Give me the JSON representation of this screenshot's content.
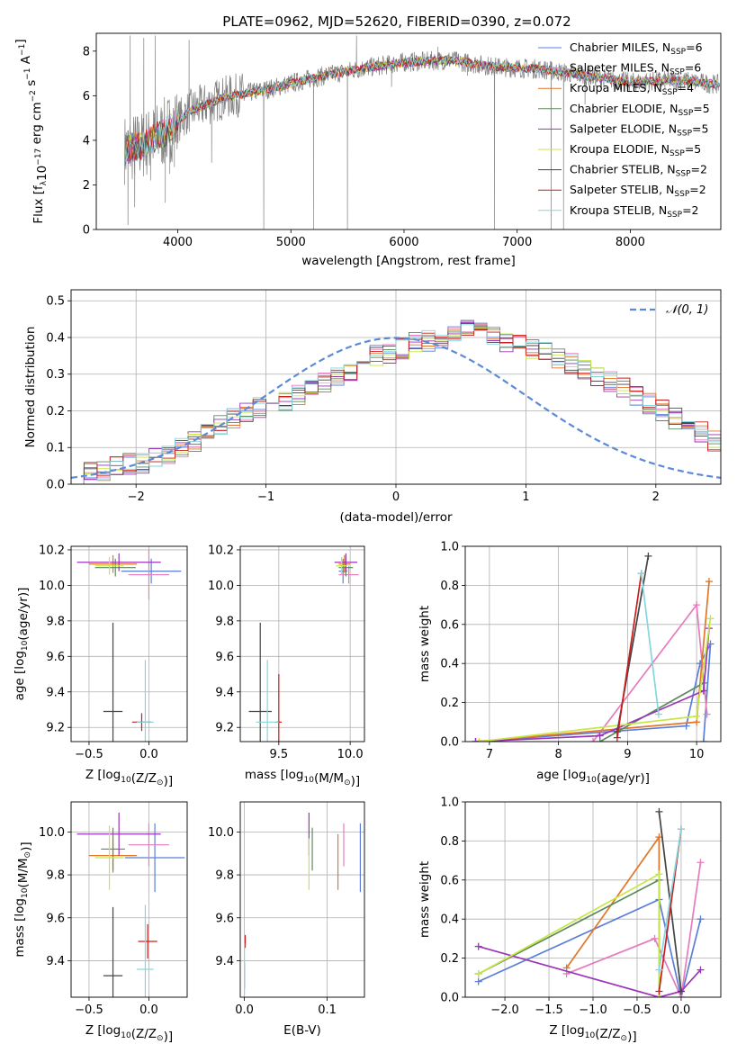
{
  "figure_title": "PLATE=0962, MJD=52620, FIBERID=0390, z=0.072",
  "colors": {
    "Chabrier MILES": "#5b7fd8",
    "Salpeter MILES": "#e67bbd",
    "Kroupa MILES": "#e0772a",
    "Chabrier ELODIE": "#5c8a5c",
    "Salpeter ELODIE": "#9a34b8",
    "Kroupa ELODIE": "#c8e64a",
    "Chabrier STELIB": "#444444",
    "Salpeter STELIB": "#c81e1e",
    "Kroupa STELIB": "#86d6de",
    "data": "#7f7f7f",
    "normal": "#5b8bd6"
  },
  "chart_data": [
    {
      "id": "spectrum",
      "type": "line",
      "xlabel": "wavelength [Angstrom, rest frame]",
      "ylabel": "Flux [f_λ10^-17 erg cm^-2 s^-1 A^-1]",
      "xlim": [
        3280,
        8800
      ],
      "ylim": [
        0,
        8.8
      ],
      "xticks": [
        4000,
        5000,
        6000,
        7000,
        8000
      ],
      "yticks": [
        0,
        2,
        4,
        6,
        8
      ],
      "grid": false,
      "legend_position": "right",
      "legend": [
        {
          "label": "Chabrier MILES, N",
          "sub": "SSP",
          "suffix": "=6",
          "color": "Chabrier MILES"
        },
        {
          "label": "Salpeter MILES, N",
          "sub": "SSP",
          "suffix": "=6",
          "color": "Salpeter MILES"
        },
        {
          "label": "Kroupa MILES, N",
          "sub": "SSP",
          "suffix": "=4",
          "color": "Kroupa MILES"
        },
        {
          "label": "Chabrier ELODIE, N",
          "sub": "SSP",
          "suffix": "=5",
          "color": "Chabrier ELODIE"
        },
        {
          "label": "Salpeter ELODIE, N",
          "sub": "SSP",
          "suffix": "=5",
          "color": "Salpeter ELODIE"
        },
        {
          "label": "Kroupa ELODIE, N",
          "sub": "SSP",
          "suffix": "=5",
          "color": "Kroupa ELODIE"
        },
        {
          "label": "Chabrier STELIB, N",
          "sub": "SSP",
          "suffix": "=2",
          "color": "Chabrier STELIB"
        },
        {
          "label": "Salpeter STELIB, N",
          "sub": "SSP",
          "suffix": "=2",
          "color": "Salpeter STELIB"
        },
        {
          "label": "Kroupa STELIB, N",
          "sub": "SSP",
          "suffix": "=2",
          "color": "Kroupa STELIB"
        }
      ],
      "continuum": [
        [
          3530,
          3.6
        ],
        [
          3700,
          3.8
        ],
        [
          3900,
          4.4
        ],
        [
          4100,
          5.3
        ],
        [
          4400,
          5.9
        ],
        [
          4800,
          6.3
        ],
        [
          5200,
          6.8
        ],
        [
          5600,
          7.2
        ],
        [
          6000,
          7.5
        ],
        [
          6400,
          7.6
        ],
        [
          6800,
          7.3
        ],
        [
          7200,
          7.2
        ],
        [
          7600,
          6.9
        ],
        [
          8000,
          6.6
        ],
        [
          8400,
          6.7
        ],
        [
          8790,
          6.5
        ]
      ],
      "spikes": [
        [
          3560,
          0.2
        ],
        [
          3580,
          8.7
        ],
        [
          3620,
          1.0
        ],
        [
          3700,
          8.6
        ],
        [
          3760,
          2.2
        ],
        [
          3800,
          8.7
        ],
        [
          3890,
          1.2
        ],
        [
          3930,
          2.5
        ],
        [
          3970,
          2.8
        ],
        [
          4100,
          8.5
        ],
        [
          4300,
          3.0
        ],
        [
          4760,
          0
        ],
        [
          5200,
          0
        ],
        [
          5500,
          0
        ],
        [
          5580,
          8.7
        ],
        [
          5890,
          6.4
        ],
        [
          6300,
          8.2
        ],
        [
          6560,
          6.9
        ],
        [
          6800,
          0
        ],
        [
          7300,
          0
        ],
        [
          7410,
          0
        ],
        [
          7600,
          5.6
        ]
      ]
    },
    {
      "id": "residuals",
      "type": "histogram",
      "xlabel": "(data-model)/error",
      "ylabel": "Normed distribution",
      "xlim": [
        -2.5,
        2.5
      ],
      "ylim": [
        0,
        0.53
      ],
      "xticks": [
        -2,
        -1,
        0,
        1,
        2
      ],
      "yticks": [
        0.0,
        0.1,
        0.2,
        0.3,
        0.4,
        0.5
      ],
      "grid": true,
      "legend_position": "top-right",
      "legend": [
        {
          "label": "N(0, 1)",
          "color": "normal"
        }
      ],
      "bin_width": 0.1,
      "bins_start": -2.5,
      "base_values": [
        0.025,
        0.03,
        0.04,
        0.05,
        0.055,
        0.06,
        0.07,
        0.08,
        0.095,
        0.115,
        0.14,
        0.16,
        0.18,
        0.2,
        0.21,
        0.22,
        0.23,
        0.245,
        0.26,
        0.28,
        0.29,
        0.31,
        0.33,
        0.35,
        0.36,
        0.37,
        0.385,
        0.39,
        0.4,
        0.41,
        0.42,
        0.41,
        0.4,
        0.39,
        0.38,
        0.37,
        0.36,
        0.34,
        0.33,
        0.31,
        0.29,
        0.28,
        0.26,
        0.24,
        0.22,
        0.2,
        0.18,
        0.16,
        0.14,
        0.12,
        0.1,
        0.09,
        0.075,
        0.06,
        0.05,
        0.04,
        0.035,
        0.03,
        0.025,
        0.02
      ]
    },
    {
      "id": "age-vs-Z",
      "type": "scatter",
      "xlabel": "Z [log10(Z/Z☉)]",
      "ylabel": "age [log10(age/yr)]",
      "xlim": [
        -0.65,
        0.32
      ],
      "ylim": [
        9.12,
        10.22
      ],
      "xticks": [
        -0.5,
        0.0
      ],
      "yticks": [
        9.2,
        9.4,
        9.6,
        9.8,
        10.0,
        10.2
      ],
      "grid": true,
      "points": [
        {
          "s": "Chabrier MILES",
          "x": 0.02,
          "y": 10.08,
          "ex": 0.25,
          "ey": 0.07
        },
        {
          "s": "Salpeter MILES",
          "x": 0.0,
          "y": 10.06,
          "ex": 0.17,
          "ey": 0.14
        },
        {
          "s": "Kroupa MILES",
          "x": -0.3,
          "y": 10.12,
          "ex": 0.2,
          "ey": 0.05
        },
        {
          "s": "Chabrier ELODIE",
          "x": -0.28,
          "y": 10.1,
          "ex": 0.17,
          "ey": 0.05
        },
        {
          "s": "Salpeter ELODIE",
          "x": -0.25,
          "y": 10.13,
          "ex": 0.35,
          "ey": 0.05
        },
        {
          "s": "Kroupa ELODIE",
          "x": -0.33,
          "y": 10.11,
          "ex": 0.12,
          "ey": 0.05
        },
        {
          "s": "Chabrier STELIB",
          "x": -0.3,
          "y": 9.29,
          "ex": 0.08,
          "ey": 0.5
        },
        {
          "s": "Salpeter STELIB",
          "x": -0.06,
          "y": 9.23,
          "ex": 0.08,
          "ey": 0.05
        },
        {
          "s": "Kroupa STELIB",
          "x": -0.03,
          "y": 9.23,
          "ex": 0.07,
          "ey": 0.35
        }
      ]
    },
    {
      "id": "age-vs-mass",
      "type": "scatter",
      "xlabel": "mass [log10(M/M☉)]",
      "ylabel": "",
      "xlim": [
        9.23,
        10.1
      ],
      "ylim": [
        9.12,
        10.22
      ],
      "xticks": [
        9.5,
        10.0
      ],
      "yticks": [
        9.2,
        9.4,
        9.6,
        9.8,
        10.0,
        10.2
      ],
      "grid": true,
      "points": [
        {
          "s": "Chabrier MILES",
          "x": 9.95,
          "y": 10.08,
          "ex": 0.03,
          "ey": 0.07
        },
        {
          "s": "Salpeter MILES",
          "x": 9.99,
          "y": 10.06,
          "ex": 0.07,
          "ey": 0.05
        },
        {
          "s": "Kroupa MILES",
          "x": 9.96,
          "y": 10.12,
          "ex": 0.04,
          "ey": 0.05
        },
        {
          "s": "Chabrier ELODIE",
          "x": 9.97,
          "y": 10.1,
          "ex": 0.05,
          "ey": 0.05
        },
        {
          "s": "Salpeter ELODIE",
          "x": 9.97,
          "y": 10.13,
          "ex": 0.08,
          "ey": 0.05
        },
        {
          "s": "Kroupa ELODIE",
          "x": 9.94,
          "y": 10.11,
          "ex": 0.04,
          "ey": 0.05
        },
        {
          "s": "Chabrier STELIB",
          "x": 9.37,
          "y": 9.29,
          "ex": 0.08,
          "ey": 0.5
        },
        {
          "s": "Salpeter STELIB",
          "x": 9.5,
          "y": 9.23,
          "ex": 0.02,
          "ey": 0.27
        },
        {
          "s": "Kroupa STELIB",
          "x": 9.42,
          "y": 9.23,
          "ex": 0.08,
          "ey": 0.35
        }
      ]
    },
    {
      "id": "weight-vs-age",
      "type": "line",
      "xlabel": "age [log10(age/yr)]",
      "ylabel": "mass weight",
      "xlim": [
        6.65,
        10.35
      ],
      "ylim": [
        0,
        1.0
      ],
      "xticks": [
        7,
        8,
        9,
        10
      ],
      "yticks": [
        0.0,
        0.2,
        0.4,
        0.6,
        0.8,
        1.0
      ],
      "grid": true,
      "series": [
        {
          "s": "Chabrier MILES",
          "points": [
            [
              6.8,
              0.0
            ],
            [
              9.85,
              0.08
            ],
            [
              10.05,
              0.4
            ],
            [
              10.2,
              0.5
            ],
            [
              10.1,
              0.0
            ]
          ]
        },
        {
          "s": "Salpeter MILES",
          "points": [
            [
              8.5,
              0.0
            ],
            [
              10.0,
              0.7
            ],
            [
              10.15,
              0.14
            ]
          ]
        },
        {
          "s": "Kroupa MILES",
          "points": [
            [
              6.8,
              0.0
            ],
            [
              10.0,
              0.1
            ],
            [
              10.18,
              0.82
            ]
          ]
        },
        {
          "s": "Chabrier ELODIE",
          "points": [
            [
              8.6,
              0.0
            ],
            [
              10.1,
              0.3
            ]
          ]
        },
        {
          "s": "Salpeter ELODIE",
          "points": [
            [
              6.8,
              0.0
            ],
            [
              8.6,
              0.03
            ],
            [
              10.1,
              0.26
            ],
            [
              10.18,
              0.58
            ]
          ]
        },
        {
          "s": "Kroupa ELODIE",
          "points": [
            [
              6.85,
              0.0
            ],
            [
              10.0,
              0.13
            ],
            [
              10.2,
              0.63
            ]
          ]
        },
        {
          "s": "Chabrier STELIB",
          "points": [
            [
              8.85,
              0.05
            ],
            [
              9.3,
              0.95
            ]
          ]
        },
        {
          "s": "Salpeter STELIB",
          "points": [
            [
              8.85,
              0.02
            ],
            [
              9.2,
              0.86
            ]
          ]
        },
        {
          "s": "Kroupa STELIB",
          "points": [
            [
              9.2,
              0.86
            ],
            [
              9.45,
              0.14
            ]
          ]
        }
      ]
    },
    {
      "id": "mass-vs-Z",
      "type": "scatter",
      "xlabel": "Z [log10(Z/Z☉)]",
      "ylabel": "mass [log10(M/M☉)]",
      "xlim": [
        -0.65,
        0.32
      ],
      "ylim": [
        9.23,
        10.14
      ],
      "xticks": [
        -0.5,
        0.0
      ],
      "yticks": [
        9.4,
        9.6,
        9.8,
        10.0
      ],
      "grid": true,
      "points": [
        {
          "s": "Chabrier MILES",
          "x": 0.05,
          "y": 9.88,
          "ex": 0.25,
          "ey": 0.16
        },
        {
          "s": "Salpeter MILES",
          "x": 0.0,
          "y": 9.94,
          "ex": 0.17,
          "ey": 0.1
        },
        {
          "s": "Kroupa MILES",
          "x": -0.3,
          "y": 9.89,
          "ex": 0.2,
          "ey": 0.08
        },
        {
          "s": "Chabrier ELODIE",
          "x": -0.3,
          "y": 9.92,
          "ex": 0.1,
          "ey": 0.1
        },
        {
          "s": "Salpeter ELODIE",
          "x": -0.25,
          "y": 9.99,
          "ex": 0.35,
          "ey": 0.1
        },
        {
          "s": "Kroupa ELODIE",
          "x": -0.33,
          "y": 9.88,
          "ex": 0.12,
          "ey": 0.15
        },
        {
          "s": "Chabrier STELIB",
          "x": -0.3,
          "y": 9.33,
          "ex": 0.08,
          "ey": 0.32
        },
        {
          "s": "Salpeter STELIB",
          "x": -0.01,
          "y": 9.49,
          "ex": 0.08,
          "ey": 0.08
        },
        {
          "s": "Kroupa STELIB",
          "x": -0.03,
          "y": 9.36,
          "ex": 0.07,
          "ey": 0.3
        }
      ]
    },
    {
      "id": "mass-vs-EBV",
      "type": "scatter",
      "xlabel": "E(B-V)",
      "ylabel": "",
      "xlim": [
        -0.005,
        0.145
      ],
      "ylim": [
        9.23,
        10.14
      ],
      "xticks": [
        0.0,
        0.1
      ],
      "yticks": [
        9.4,
        9.6,
        9.8,
        10.0
      ],
      "grid": true,
      "points": [
        {
          "s": "Chabrier MILES",
          "x": 0.14,
          "y": 9.88,
          "ex": 0.0,
          "ey": 0.16
        },
        {
          "s": "Salpeter MILES",
          "x": 0.12,
          "y": 9.94,
          "ex": 0.0,
          "ey": 0.1
        },
        {
          "s": "Kroupa MILES",
          "x": 0.113,
          "y": 9.86,
          "ex": 0.0,
          "ey": 0.13
        },
        {
          "s": "Chabrier ELODIE",
          "x": 0.082,
          "y": 9.92,
          "ex": 0.0,
          "ey": 0.1
        },
        {
          "s": "Salpeter ELODIE",
          "x": 0.078,
          "y": 9.99,
          "ex": 0.0,
          "ey": 0.1
        },
        {
          "s": "Kroupa ELODIE",
          "x": 0.078,
          "y": 9.85,
          "ex": 0.0,
          "ey": 0.12
        },
        {
          "s": "Chabrier STELIB",
          "x": 0.0,
          "y": 9.33,
          "ex": 0.0,
          "ey": 0.06
        },
        {
          "s": "Salpeter STELIB",
          "x": 0.001,
          "y": 9.49,
          "ex": 0.0,
          "ey": 0.03
        },
        {
          "s": "Kroupa STELIB",
          "x": 0.0,
          "y": 9.36,
          "ex": 0.0,
          "ey": 0.12
        }
      ]
    },
    {
      "id": "weight-vs-Z",
      "type": "line",
      "xlabel": "Z [log10(Z/Z☉)]",
      "ylabel": "mass weight",
      "xlim": [
        -2.45,
        0.45
      ],
      "ylim": [
        0,
        1.0
      ],
      "xticks": [
        -2.0,
        -1.5,
        -1.0,
        -0.5,
        0.0
      ],
      "yticks": [
        0.0,
        0.2,
        0.4,
        0.6,
        0.8,
        1.0
      ],
      "grid": true,
      "series": [
        {
          "s": "Chabrier MILES",
          "points": [
            [
              -2.3,
              0.08
            ],
            [
              -0.25,
              0.5
            ],
            [
              0.0,
              0.0
            ],
            [
              0.22,
              0.4
            ]
          ]
        },
        {
          "s": "Salpeter MILES",
          "points": [
            [
              -1.3,
              0.12
            ],
            [
              -0.3,
              0.3
            ],
            [
              0.0,
              0.0
            ],
            [
              0.22,
              0.69
            ]
          ]
        },
        {
          "s": "Kroupa MILES",
          "points": [
            [
              -1.3,
              0.15
            ],
            [
              -0.25,
              0.82
            ],
            [
              -0.25,
              0.0
            ]
          ]
        },
        {
          "s": "Chabrier ELODIE",
          "points": [
            [
              -2.3,
              0.12
            ],
            [
              -0.25,
              0.6
            ],
            [
              -0.25,
              0.0
            ]
          ]
        },
        {
          "s": "Salpeter ELODIE",
          "points": [
            [
              -2.3,
              0.26
            ],
            [
              -0.25,
              0.0
            ],
            [
              0.0,
              0.03
            ],
            [
              0.22,
              0.14
            ]
          ]
        },
        {
          "s": "Kroupa ELODIE",
          "points": [
            [
              -2.3,
              0.12
            ],
            [
              -0.25,
              0.63
            ],
            [
              -0.25,
              0.0
            ]
          ]
        },
        {
          "s": "Chabrier STELIB",
          "points": [
            [
              -0.25,
              0.95
            ],
            [
              0.0,
              0.03
            ]
          ]
        },
        {
          "s": "Salpeter STELIB",
          "points": [
            [
              -0.25,
              0.03
            ],
            [
              0.0,
              0.86
            ]
          ]
        },
        {
          "s": "Kroupa STELIB",
          "points": [
            [
              -0.25,
              0.14
            ],
            [
              0.0,
              0.86
            ]
          ]
        }
      ]
    }
  ]
}
